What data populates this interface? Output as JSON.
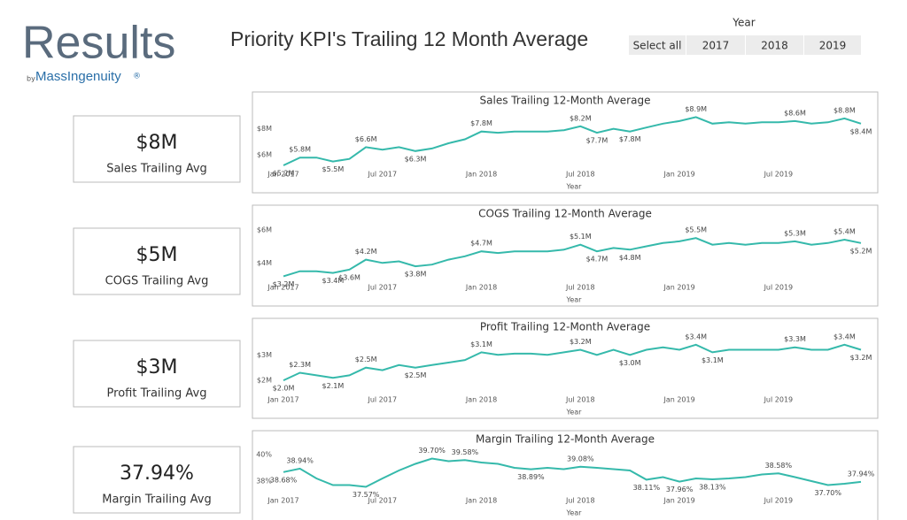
{
  "logo": {
    "word": "Results",
    "by": "by",
    "brand": "MassIngenuity",
    "mark": "®"
  },
  "title": "Priority KPI's Trailing 12 Month Average",
  "slicer": {
    "title": "Year",
    "options": [
      "Select all",
      "2017",
      "2018",
      "2019"
    ]
  },
  "cards": [
    {
      "value": "$8M",
      "label": "Sales Trailing Avg"
    },
    {
      "value": "$5M",
      "label": "COGS Trailing Avg"
    },
    {
      "value": "$3M",
      "label": "Profit Trailing Avg"
    },
    {
      "value": "37.94%",
      "label": "Margin Trailing Avg"
    }
  ],
  "chart_data": [
    {
      "type": "line",
      "title": "Sales Trailing 12-Month Average",
      "x_label": "Year",
      "color": "#35b9ab",
      "categories": [
        "Jan 2017",
        null,
        null,
        null,
        null,
        null,
        "Jul 2017",
        null,
        null,
        null,
        null,
        null,
        "Jan 2018",
        null,
        null,
        null,
        null,
        null,
        "Jul 2018",
        null,
        null,
        null,
        null,
        null,
        "Jan 2019",
        null,
        null,
        null,
        null,
        null,
        "Jul 2019",
        null,
        null,
        null,
        null,
        null
      ],
      "values": [
        5.2,
        5.8,
        5.8,
        5.5,
        5.7,
        6.6,
        6.4,
        6.6,
        6.3,
        6.5,
        6.9,
        7.2,
        7.8,
        7.7,
        7.8,
        7.8,
        7.8,
        7.9,
        8.2,
        7.7,
        8.0,
        7.8,
        8.1,
        8.4,
        8.6,
        8.9,
        8.4,
        8.5,
        8.4,
        8.5,
        8.5,
        8.6,
        8.4,
        8.5,
        8.8,
        8.4
      ],
      "value_labels": [
        "$5.2M",
        "$5.8M",
        null,
        "$5.5M",
        null,
        "$6.6M",
        null,
        null,
        "$6.3M",
        null,
        null,
        null,
        "$7.8M",
        null,
        null,
        null,
        null,
        null,
        "$8.2M",
        "$7.7M",
        null,
        "$7.8M",
        null,
        null,
        null,
        "$8.9M",
        null,
        null,
        null,
        null,
        null,
        "$8.6M",
        null,
        null,
        "$8.8M",
        "$8.4M"
      ],
      "ylim": [
        5.0,
        9.2
      ],
      "yticks": [
        {
          "value": 6,
          "label": "$6M"
        },
        {
          "value": 8,
          "label": "$8M"
        }
      ]
    },
    {
      "type": "line",
      "title": "COGS Trailing 12-Month Average",
      "x_label": "Year",
      "color": "#35b9ab",
      "categories": [
        "Jan 2017",
        null,
        null,
        null,
        null,
        null,
        "Jul 2017",
        null,
        null,
        null,
        null,
        null,
        "Jan 2018",
        null,
        null,
        null,
        null,
        null,
        "Jul 2018",
        null,
        null,
        null,
        null,
        null,
        "Jan 2019",
        null,
        null,
        null,
        null,
        null,
        "Jul 2019",
        null,
        null,
        null,
        null,
        null
      ],
      "values": [
        3.2,
        3.5,
        3.5,
        3.4,
        3.6,
        4.2,
        4.0,
        4.1,
        3.8,
        3.9,
        4.2,
        4.4,
        4.7,
        4.6,
        4.7,
        4.7,
        4.7,
        4.8,
        5.1,
        4.7,
        4.9,
        4.8,
        5.0,
        5.2,
        5.3,
        5.5,
        5.1,
        5.2,
        5.1,
        5.2,
        5.2,
        5.3,
        5.1,
        5.2,
        5.4,
        5.2
      ],
      "value_labels": [
        "$3.2M",
        null,
        null,
        "$3.4M",
        "$3.6M",
        "$4.2M",
        null,
        null,
        "$3.8M",
        null,
        null,
        null,
        "$4.7M",
        null,
        null,
        null,
        null,
        null,
        "$5.1M",
        "$4.7M",
        null,
        "$4.8M",
        null,
        null,
        null,
        "$5.5M",
        null,
        null,
        null,
        null,
        null,
        "$5.3M",
        null,
        null,
        "$5.4M",
        "$5.2M"
      ],
      "ylim": [
        2.9,
        6.2
      ],
      "yticks": [
        {
          "value": 4,
          "label": "$4M"
        },
        {
          "value": 6,
          "label": "$6M"
        }
      ]
    },
    {
      "type": "line",
      "title": "Profit Trailing 12-Month Average",
      "x_label": "Year",
      "color": "#35b9ab",
      "categories": [
        "Jan 2017",
        null,
        null,
        null,
        null,
        null,
        "Jul 2017",
        null,
        null,
        null,
        null,
        null,
        "Jan 2018",
        null,
        null,
        null,
        null,
        null,
        "Jul 2018",
        null,
        null,
        null,
        null,
        null,
        "Jan 2019",
        null,
        null,
        null,
        null,
        null,
        "Jul 2019",
        null,
        null,
        null,
        null,
        null
      ],
      "values": [
        2.0,
        2.3,
        2.2,
        2.1,
        2.2,
        2.5,
        2.4,
        2.6,
        2.5,
        2.6,
        2.7,
        2.8,
        3.1,
        3.0,
        3.05,
        3.05,
        3.0,
        3.1,
        3.2,
        3.0,
        3.2,
        3.0,
        3.2,
        3.3,
        3.2,
        3.4,
        3.1,
        3.2,
        3.2,
        3.2,
        3.2,
        3.3,
        3.2,
        3.2,
        3.4,
        3.2
      ],
      "value_labels": [
        "$2.0M",
        "$2.3M",
        null,
        "$2.1M",
        null,
        "$2.5M",
        null,
        null,
        "$2.5M",
        null,
        null,
        null,
        "$3.1M",
        null,
        null,
        null,
        null,
        null,
        "$3.2M",
        null,
        null,
        "$3.0M",
        null,
        null,
        null,
        "$3.4M",
        "$3.1M",
        null,
        null,
        null,
        null,
        "$3.3M",
        null,
        null,
        "$3.4M",
        "$3.2M"
      ],
      "ylim": [
        1.45,
        3.6
      ],
      "yticks": [
        {
          "value": 2,
          "label": "$2M"
        },
        {
          "value": 3,
          "label": "$3M"
        }
      ]
    },
    {
      "type": "line",
      "title": "Margin Trailing 12-Month Average",
      "x_label": "Year",
      "color": "#35b9ab",
      "categories": [
        "Jan 2017",
        null,
        null,
        null,
        null,
        null,
        "Jul 2017",
        null,
        null,
        null,
        null,
        null,
        "Jan 2018",
        null,
        null,
        null,
        null,
        null,
        "Jul 2018",
        null,
        null,
        null,
        null,
        null,
        "Jan 2019",
        null,
        null,
        null,
        null,
        null,
        "Jul 2019",
        null,
        null,
        null,
        null,
        null
      ],
      "values": [
        38.68,
        38.94,
        38.2,
        37.7,
        37.7,
        37.57,
        38.2,
        38.8,
        39.3,
        39.7,
        39.5,
        39.58,
        39.4,
        39.3,
        39.0,
        38.89,
        39.0,
        38.9,
        39.08,
        39.0,
        38.9,
        38.8,
        38.11,
        38.3,
        37.96,
        38.2,
        38.13,
        38.2,
        38.3,
        38.5,
        38.58,
        38.3,
        38.0,
        37.7,
        37.8,
        37.94
      ],
      "value_labels": [
        "38.68%",
        "38.94%",
        null,
        null,
        null,
        "37.57%",
        null,
        null,
        null,
        "39.70%",
        null,
        "39.58%",
        null,
        null,
        null,
        "38.89%",
        null,
        null,
        "39.08%",
        null,
        null,
        null,
        "38.11%",
        null,
        "37.96%",
        null,
        "38.13%",
        null,
        null,
        null,
        "38.58%",
        null,
        null,
        "37.70%",
        null,
        "37.94%"
      ],
      "ylim": [
        37.0,
        40.2
      ],
      "yticks": [
        {
          "value": 38,
          "label": "38%"
        },
        {
          "value": 40,
          "label": "40%"
        }
      ]
    }
  ]
}
